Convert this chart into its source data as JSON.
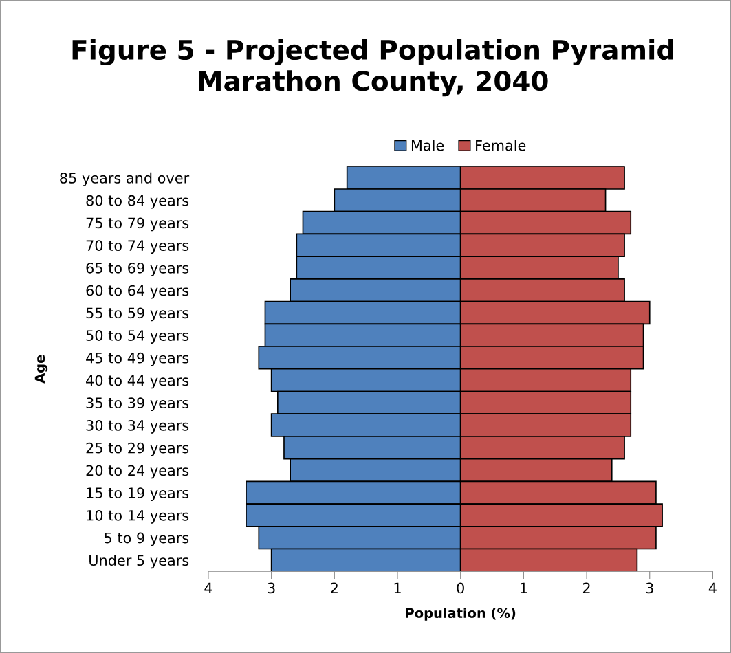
{
  "chart_data": {
    "type": "bar",
    "orientation": "horizontal",
    "title": "Figure 5 - Projected Population Pyramid\nMarathon County, 2040",
    "xlabel": "Population (%)",
    "ylabel": "Age",
    "categories": [
      "85 years and over",
      "80 to 84 years",
      "75 to 79 years",
      "70 to 74 years",
      "65 to 69 years",
      "60 to 64 years",
      "55 to 59 years",
      "50 to 54 years",
      "45 to 49 years",
      "40 to 44 years",
      "35 to 39 years",
      "30 to 34 years",
      "25 to 29 years",
      "20 to 24 years",
      "15 to 19 years",
      "10 to 14 years",
      "5 to 9 years",
      "Under 5 years"
    ],
    "series": [
      {
        "name": "Male",
        "color": "#4f81bd",
        "values": [
          -1.8,
          -2.0,
          -2.5,
          -2.6,
          -2.6,
          -2.7,
          -3.1,
          -3.1,
          -3.2,
          -3.0,
          -2.9,
          -3.0,
          -2.8,
          -2.7,
          -3.4,
          -3.4,
          -3.2,
          -3.0
        ]
      },
      {
        "name": "Female",
        "color": "#c0504d",
        "values": [
          2.6,
          2.3,
          2.7,
          2.6,
          2.5,
          2.6,
          3.0,
          2.9,
          2.9,
          2.7,
          2.7,
          2.7,
          2.6,
          2.4,
          3.1,
          3.2,
          3.1,
          2.8
        ]
      }
    ],
    "xlim": [
      -4,
      4
    ],
    "xticks": [
      {
        "value": -4,
        "label": "4"
      },
      {
        "value": -3,
        "label": "3"
      },
      {
        "value": -2,
        "label": "2"
      },
      {
        "value": -1,
        "label": "1"
      },
      0,
      1,
      2,
      3,
      4
    ],
    "grid": false,
    "legend": "top",
    "stacked": true
  }
}
